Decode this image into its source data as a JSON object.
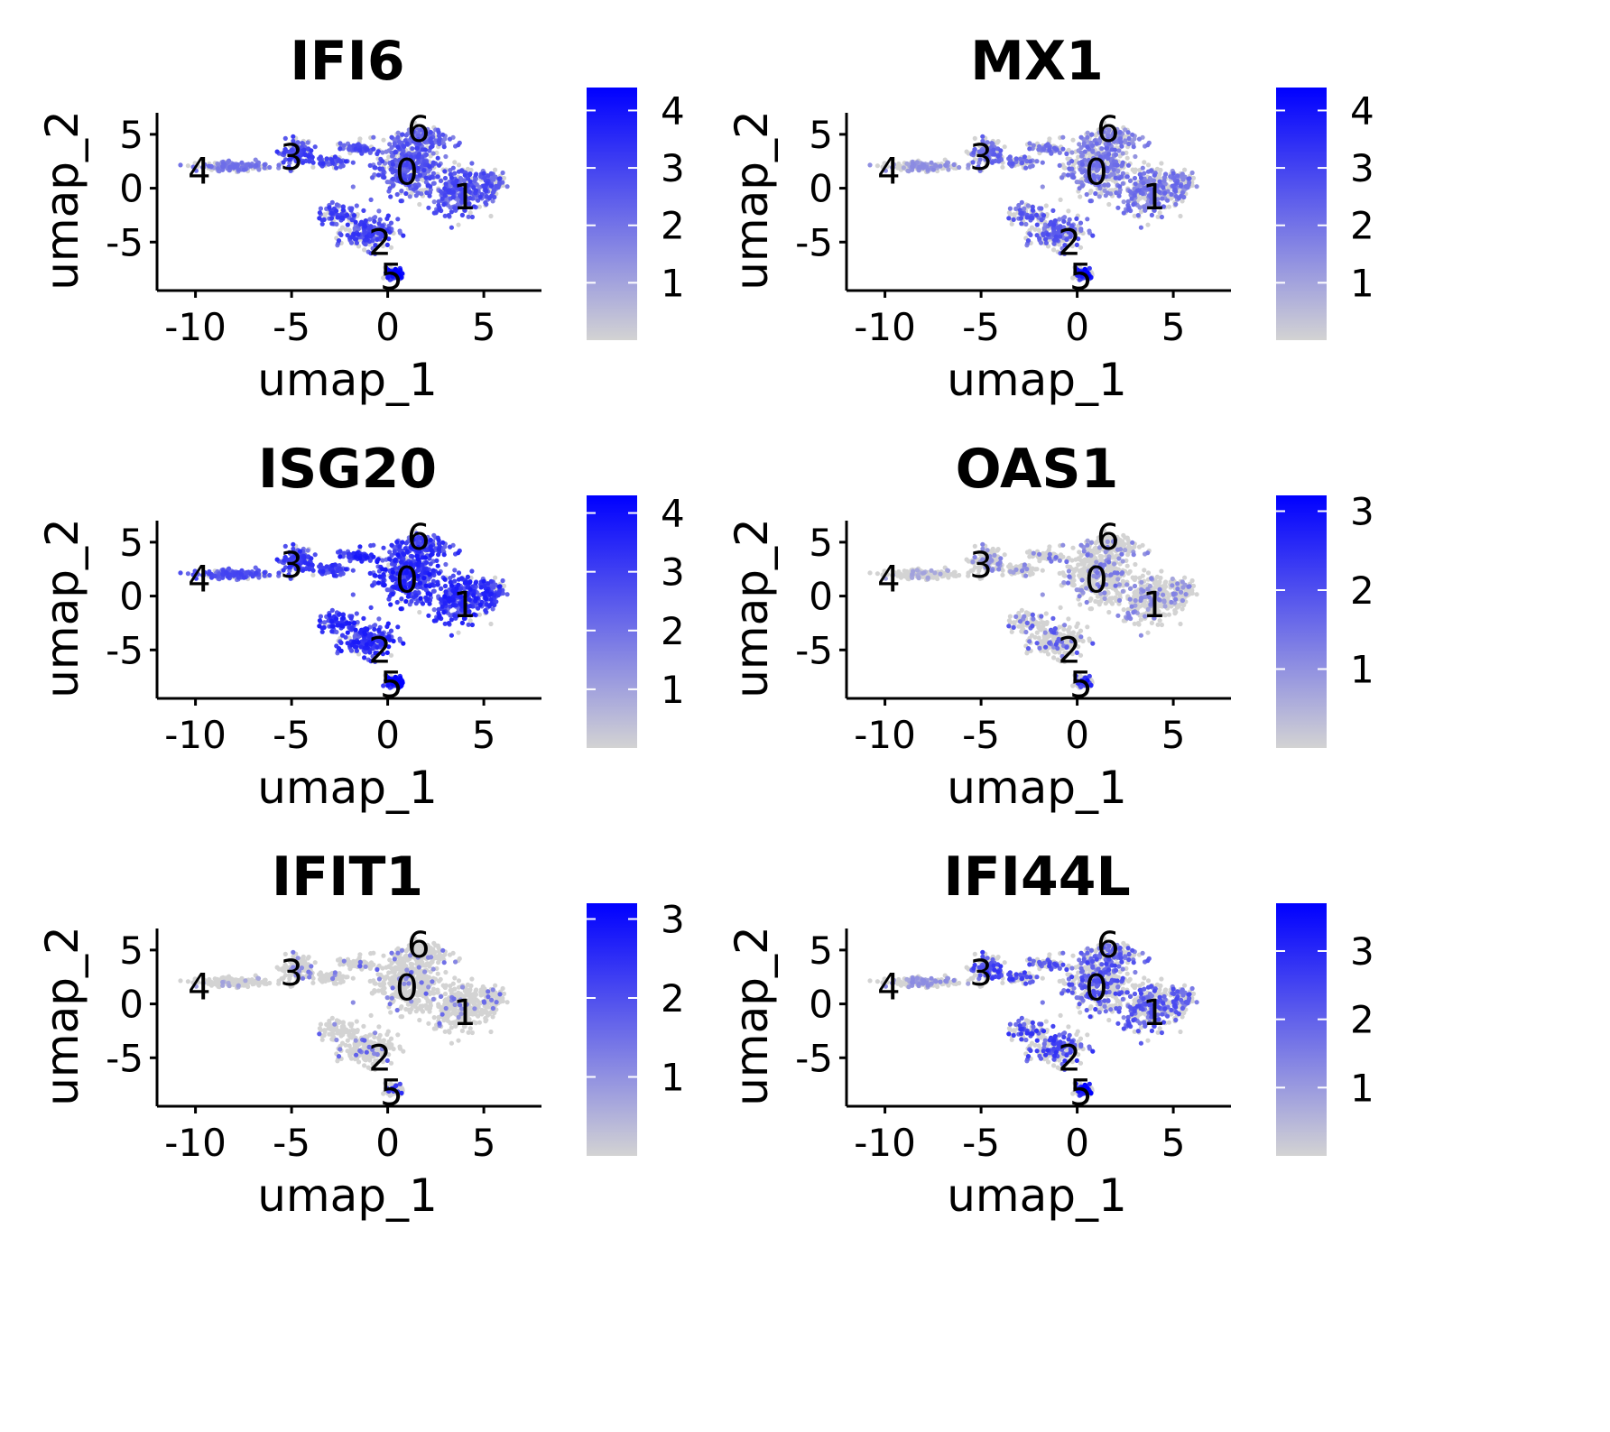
{
  "chart_data": {
    "type": "scatter",
    "colors": {
      "low": "#d3d3d3",
      "high": "#0000ff",
      "cluster_label": "#000000"
    },
    "panels": [
      {
        "title": "IFI6",
        "xlabel": "umap_1",
        "ylabel": "umap_2",
        "xlim": [
          -12,
          8
        ],
        "ylim": [
          -9.5,
          7
        ],
        "xticks": [
          -10,
          -5,
          0,
          5
        ],
        "xtick_labels": [
          "-10",
          "-5",
          "0",
          "5"
        ],
        "yticks": [
          5,
          0,
          -5
        ],
        "ytick_labels": [
          "5",
          "0",
          "-5"
        ],
        "colorbar": {
          "min": 0,
          "max": 4.4,
          "ticks": [
            1,
            2,
            3,
            4
          ],
          "tick_labels": [
            "1",
            "2",
            "3",
            "4"
          ]
        },
        "expression": {
          "c0": 2.4,
          "c1": 2.4,
          "c2": 2.6,
          "c3": 2.6,
          "c4": 1.7,
          "c5": 3.6,
          "c6": 2.2
        },
        "fraction_expressing": 0.72
      },
      {
        "title": "MX1",
        "xlabel": "umap_1",
        "ylabel": "umap_2",
        "xlim": [
          -12,
          8
        ],
        "ylim": [
          -9.5,
          7
        ],
        "xticks": [
          -10,
          -5,
          0,
          5
        ],
        "xtick_labels": [
          "-10",
          "-5",
          "0",
          "5"
        ],
        "yticks": [
          5,
          0,
          -5
        ],
        "ytick_labels": [
          "5",
          "0",
          "-5"
        ],
        "colorbar": {
          "min": 0,
          "max": 4.4,
          "ticks": [
            1,
            2,
            3,
            4
          ],
          "tick_labels": [
            "1",
            "2",
            "3",
            "4"
          ]
        },
        "expression": {
          "c0": 1.8,
          "c1": 1.8,
          "c2": 2.2,
          "c3": 2.0,
          "c4": 1.2,
          "c5": 3.4,
          "c6": 1.6
        },
        "fraction_expressing": 0.5
      },
      {
        "title": "ISG20",
        "xlabel": "umap_1",
        "ylabel": "umap_2",
        "xlim": [
          -12,
          8
        ],
        "ylim": [
          -9.5,
          7
        ],
        "xticks": [
          -10,
          -5,
          0,
          5
        ],
        "xtick_labels": [
          "-10",
          "-5",
          "0",
          "5"
        ],
        "yticks": [
          5,
          0,
          -5
        ],
        "ytick_labels": [
          "5",
          "0",
          "-5"
        ],
        "colorbar": {
          "min": 0,
          "max": 4.3,
          "ticks": [
            1,
            2,
            3,
            4
          ],
          "tick_labels": [
            "1",
            "2",
            "3",
            "4"
          ]
        },
        "expression": {
          "c0": 3.0,
          "c1": 2.9,
          "c2": 2.9,
          "c3": 2.7,
          "c4": 2.3,
          "c5": 3.6,
          "c6": 2.8
        },
        "fraction_expressing": 0.9
      },
      {
        "title": "OAS1",
        "xlabel": "umap_1",
        "ylabel": "umap_2",
        "xlim": [
          -12,
          8
        ],
        "ylim": [
          -9.5,
          7
        ],
        "xticks": [
          -10,
          -5,
          0,
          5
        ],
        "xtick_labels": [
          "-10",
          "-5",
          "0",
          "5"
        ],
        "yticks": [
          5,
          0,
          -5
        ],
        "ytick_labels": [
          "5",
          "0",
          "-5"
        ],
        "colorbar": {
          "min": 0,
          "max": 3.2,
          "ticks": [
            1,
            2,
            3
          ],
          "tick_labels": [
            "1",
            "2",
            "3"
          ]
        },
        "expression": {
          "c0": 1.2,
          "c1": 1.0,
          "c2": 1.5,
          "c3": 1.0,
          "c4": 0.6,
          "c5": 2.3,
          "c6": 1.0
        },
        "fraction_expressing": 0.18
      },
      {
        "title": "IFIT1",
        "xlabel": "umap_1",
        "ylabel": "umap_2",
        "xlim": [
          -12,
          8
        ],
        "ylim": [
          -9.5,
          7
        ],
        "xticks": [
          -10,
          -5,
          0,
          5
        ],
        "xtick_labels": [
          "-10",
          "-5",
          "0",
          "5"
        ],
        "yticks": [
          5,
          0,
          -5
        ],
        "ytick_labels": [
          "5",
          "0",
          "-5"
        ],
        "colorbar": {
          "min": 0,
          "max": 3.2,
          "ticks": [
            1,
            2,
            3
          ],
          "tick_labels": [
            "1",
            "2",
            "3"
          ]
        },
        "expression": {
          "c0": 1.4,
          "c1": 1.3,
          "c2": 1.4,
          "c3": 1.1,
          "c4": 0.6,
          "c5": 2.2,
          "c6": 1.2
        },
        "fraction_expressing": 0.07
      },
      {
        "title": "IFI44L",
        "xlabel": "umap_1",
        "ylabel": "umap_2",
        "xlim": [
          -12,
          8
        ],
        "ylim": [
          -9.5,
          7
        ],
        "xticks": [
          -10,
          -5,
          0,
          5
        ],
        "xtick_labels": [
          "-10",
          "-5",
          "0",
          "5"
        ],
        "yticks": [
          5,
          0,
          -5
        ],
        "ytick_labels": [
          "5",
          "0",
          "-5"
        ],
        "colorbar": {
          "min": 0,
          "max": 3.7,
          "ticks": [
            1,
            2,
            3
          ],
          "tick_labels": [
            "1",
            "2",
            "3"
          ]
        },
        "expression": {
          "c0": 2.0,
          "c1": 1.9,
          "c2": 2.2,
          "c3": 2.2,
          "c4": 1.0,
          "c5": 3.3,
          "c6": 1.8
        },
        "fraction_expressing": 0.4
      }
    ],
    "clusters": [
      {
        "label": "0",
        "x": 1.0,
        "y": 1.5
      },
      {
        "label": "1",
        "x": 4.0,
        "y": -0.8
      },
      {
        "label": "2",
        "x": -0.4,
        "y": -5.0
      },
      {
        "label": "3",
        "x": -5.0,
        "y": 2.9
      },
      {
        "label": "4",
        "x": -9.8,
        "y": 1.6
      },
      {
        "label": "5",
        "x": 0.2,
        "y": -8.2
      },
      {
        "label": "6",
        "x": 1.6,
        "y": 5.5
      }
    ],
    "grid": false,
    "legend": "colorbar-right"
  }
}
